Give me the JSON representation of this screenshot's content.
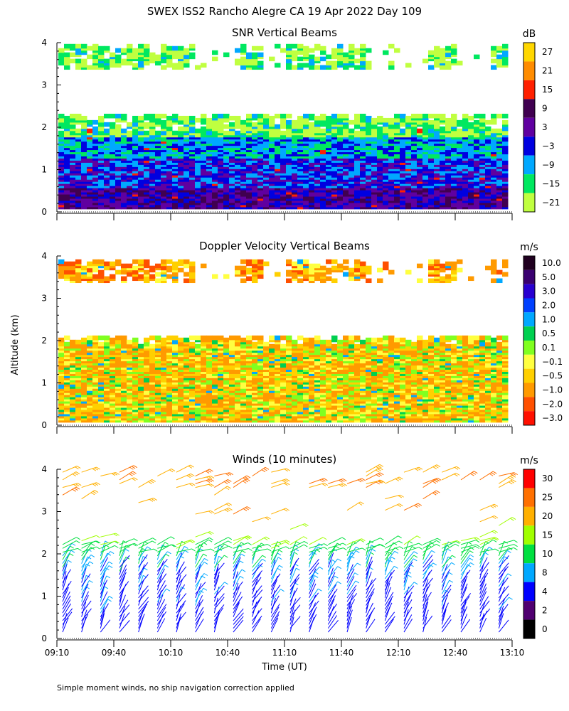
{
  "title": "SWEX ISS2 Rancho Alegre CA  19 Apr 2022 Day 109",
  "shared": {
    "ylabel": "Altitude (km)",
    "xlabel": "Time (UT)",
    "x_ticks": [
      "09:10",
      "09:40",
      "10:10",
      "10:40",
      "11:10",
      "11:40",
      "12:10",
      "12:40",
      "13:10"
    ],
    "y_ticks": [
      "0",
      "1",
      "2",
      "3",
      "4"
    ],
    "ylim": [
      0,
      4
    ],
    "xlim": [
      "09:10",
      "13:10"
    ]
  },
  "footnote": "Simple moment winds, no ship navigation correction applied",
  "chart_data": [
    {
      "type": "heatmap",
      "title": "SNR Vertical Beams",
      "unit": "dB",
      "colorbar_ticks": [
        "27",
        "21",
        "15",
        "9",
        "3",
        "−3",
        "−9",
        "−15",
        "−21"
      ],
      "colorbar_colors": [
        "#ffd700",
        "#ff8c00",
        "#ff2000",
        "#400050",
        "#6000a0",
        "#0000e0",
        "#00a8ff",
        "#00e860",
        "#c0ff40"
      ],
      "description_layers": [
        {
          "alt_range_km": [
            0.1,
            0.6
          ],
          "dominant_db": 3
        },
        {
          "alt_range_km": [
            0.6,
            1.3
          ],
          "dominant_db": -3
        },
        {
          "alt_range_km": [
            1.3,
            1.8
          ],
          "dominant_db": -9
        },
        {
          "alt_range_km": [
            1.8,
            2.3
          ],
          "dominant_db": -18
        },
        {
          "alt_range_km": [
            3.4,
            3.95
          ],
          "dominant_db": -18
        }
      ]
    },
    {
      "type": "heatmap",
      "title": "Doppler Velocity Vertical Beams",
      "unit": "m/s",
      "colorbar_ticks": [
        "10.0",
        "5.0",
        "3.0",
        "2.0",
        "1.0",
        "0.5",
        "0.1",
        "−0.1",
        "−0.5",
        "−1.0",
        "−2.0",
        "−3.0"
      ],
      "colorbar_colors": [
        "#200020",
        "#3a0070",
        "#2800d0",
        "#0040ff",
        "#00a8ff",
        "#00d050",
        "#80ff20",
        "#ffff40",
        "#ffd000",
        "#ff9a00",
        "#ff5000",
        "#ff1000"
      ],
      "description_layers": [
        {
          "alt_range_km": [
            0.1,
            2.1
          ],
          "dominant_ms": -0.5
        },
        {
          "alt_range_km": [
            3.4,
            3.9
          ],
          "dominant_ms": -1.0
        }
      ]
    },
    {
      "type": "wind-barbs",
      "title": "Winds (10 minutes)",
      "unit": "m/s",
      "colorbar_ticks": [
        "30",
        "25",
        "20",
        "15",
        "10",
        "8",
        "4",
        "2",
        "0"
      ],
      "colorbar_colors": [
        "#ff0000",
        "#ff7000",
        "#ffb000",
        "#a0ff00",
        "#00e040",
        "#00a8ff",
        "#0000ff",
        "#500070",
        "#000000"
      ],
      "profile_times": [
        "09:10",
        "09:20",
        "09:30",
        "09:40",
        "09:50",
        "10:00",
        "10:10",
        "10:20",
        "10:30",
        "10:40",
        "10:50",
        "11:00",
        "11:10",
        "11:20",
        "11:30",
        "11:40",
        "11:50",
        "12:00",
        "12:10",
        "12:20",
        "12:30",
        "12:40",
        "12:50",
        "13:00"
      ],
      "speed_by_altitude": [
        {
          "alt_km": 0.5,
          "speed_ms": 6
        },
        {
          "alt_km": 1.0,
          "speed_ms": 7
        },
        {
          "alt_km": 1.5,
          "speed_ms": 8
        },
        {
          "alt_km": 2.0,
          "speed_ms": 12
        },
        {
          "alt_km": 2.5,
          "speed_ms": 18
        },
        {
          "alt_km": 3.0,
          "speed_ms": 24
        },
        {
          "alt_km": 3.8,
          "speed_ms": 25
        }
      ]
    }
  ]
}
